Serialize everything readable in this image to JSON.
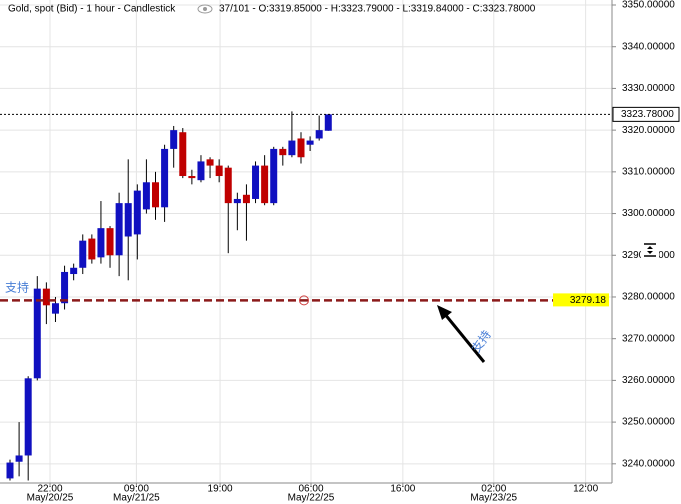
{
  "chart_data": {
    "type": "candlestick",
    "title": "Gold, spot (Bid) - 1 hour - Candlestick",
    "info": "37/101 - O:3319.85000 - H:3323.79000 - L:3319.84000 - C:3323.78000",
    "x": [
      0,
      1,
      2,
      3,
      4,
      5,
      6,
      7,
      8,
      9,
      10,
      11,
      12,
      13,
      14,
      15,
      16,
      17,
      18,
      19,
      20,
      21,
      22,
      23,
      24,
      25,
      26,
      27,
      28,
      29,
      30,
      31,
      32,
      33,
      34,
      35
    ],
    "open": [
      3236.5,
      3240.5,
      3242,
      3260.5,
      3282,
      3276,
      3278.5,
      3285.5,
      3287,
      3294,
      3289.5,
      3296.5,
      3290,
      3294.5,
      3295,
      3301,
      3307.5,
      3301.5,
      3315.5,
      3319.5,
      3309,
      3308,
      3313,
      3311.5,
      3311,
      3302.5,
      3304.5,
      3303.5,
      3311.5,
      3302.5,
      3315.5,
      3314,
      3318,
      3316.5,
      3318,
      3319.85
    ],
    "high": [
      3241,
      3250,
      3261,
      3285,
      3283.5,
      3280,
      3287.5,
      3288,
      3295,
      3295,
      3303,
      3297,
      3305,
      3313,
      3307,
      3313,
      3310,
      3316.5,
      3321,
      3320.5,
      3310.5,
      3314,
      3313.5,
      3313,
      3311.5,
      3305,
      3307,
      3312.5,
      3314,
      3316,
      3316,
      3324.5,
      3319.5,
      3318.5,
      3323.5,
      3323.79
    ],
    "low": [
      3236,
      3237,
      3236,
      3260,
      3273.5,
      3274,
      3277,
      3284,
      3285.5,
      3288,
      3288,
      3287,
      3285,
      3284,
      3289,
      3300,
      3298.5,
      3298,
      3311,
      3308.5,
      3307,
      3307.5,
      3308.5,
      3307.5,
      3290.5,
      3296,
      3293.5,
      3302.5,
      3302,
      3302,
      3311.5,
      3313.5,
      3312,
      3315,
      3317.5,
      3319.84
    ],
    "close": [
      3240.3,
      3242,
      3260.5,
      3282,
      3278,
      3278.5,
      3286,
      3287,
      3293.5,
      3289,
      3296.5,
      3290,
      3302.5,
      3302.5,
      3305.5,
      3307.5,
      3301.5,
      3315.5,
      3320,
      3309,
      3308.5,
      3312.5,
      3311.5,
      3309,
      3302.5,
      3303.5,
      3302.5,
      3311.5,
      3302.5,
      3315.5,
      3314,
      3317.5,
      3313.5,
      3317.5,
      3320,
      3323.78
    ],
    "up_color": "#1010c0",
    "down_color": "#c00000",
    "xlim": [
      -1.1,
      66.2
    ],
    "ylim": [
      3235.4,
      3351.2
    ],
    "xticks": [
      {
        "value": 4.4,
        "label": "22:00",
        "date": "May/20/25"
      },
      {
        "value": 13.9,
        "label": "09:00",
        "date": "May/21/25"
      },
      {
        "value": 23.1,
        "label": "19:00"
      },
      {
        "value": 33.1,
        "label": "06:00",
        "date": "May/22/25"
      },
      {
        "value": 43.2,
        "label": "16:00"
      },
      {
        "value": 53.2,
        "label": "02:00",
        "date": "May/23/25"
      },
      {
        "value": 63.3,
        "label": "12:00"
      }
    ],
    "yticks": [
      {
        "value": 3350,
        "label": "3350.00000"
      },
      {
        "value": 3340,
        "label": "3340.00000"
      },
      {
        "value": 3330,
        "label": "3330.00000"
      },
      {
        "value": 3320,
        "label": "3320.00000"
      },
      {
        "value": 3310,
        "label": "3310.00000"
      },
      {
        "value": 3300,
        "label": "3300.00000"
      },
      {
        "value": 3290,
        "label": "3290.00000"
      },
      {
        "value": 3280,
        "label": "3280.00000"
      },
      {
        "value": 3270,
        "label": "3270.00000"
      },
      {
        "value": 3260,
        "label": "3260.00000"
      },
      {
        "value": 3250,
        "label": "3250.00000"
      },
      {
        "value": 3240,
        "label": "3240.00000"
      }
    ],
    "grid": true,
    "support": {
      "value": 3279.18,
      "label": "支持",
      "arrow_label": "支持",
      "color": "#8b1a1a"
    },
    "last_price": {
      "value": 3323.78,
      "label": "3323.78000"
    }
  }
}
